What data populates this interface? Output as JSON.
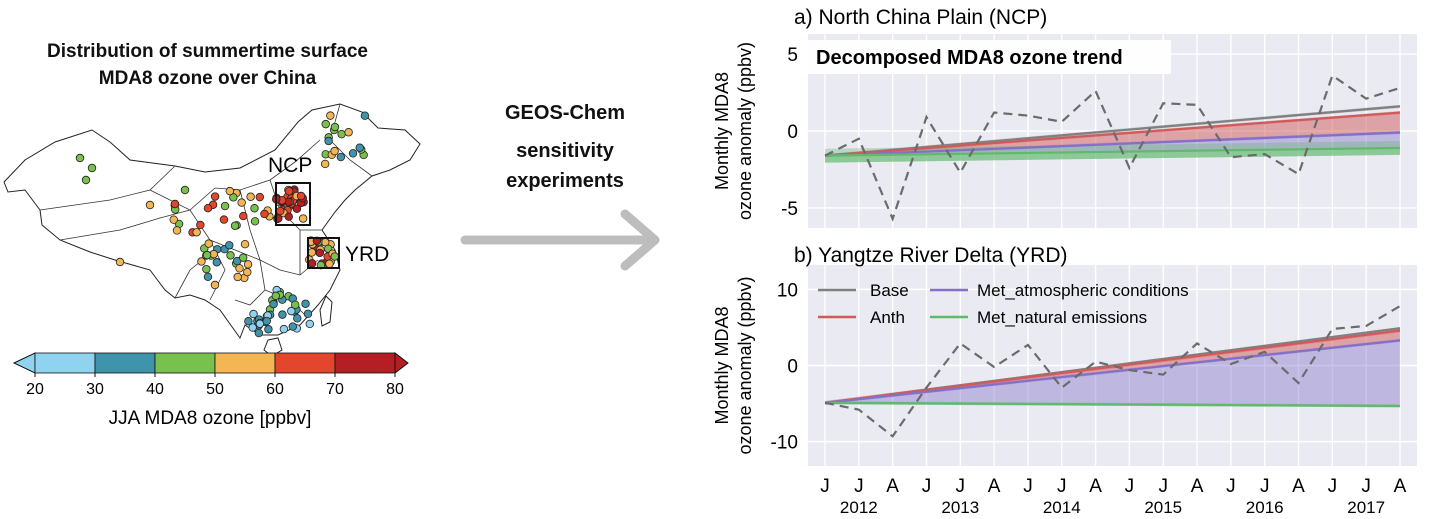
{
  "left_panel": {
    "title_line1": "Distribution of summertime surface",
    "title_line2": "MDA8 ozone over China",
    "box_labels": [
      "NCP",
      "YRD"
    ],
    "colorbar": {
      "ticks": [
        "20",
        "30",
        "40",
        "50",
        "60",
        "70",
        "80"
      ],
      "colors": [
        "#8fd3f0",
        "#3f93ab",
        "#79c14e",
        "#f4b555",
        "#e4462d",
        "#b51f24"
      ],
      "label": "JJA MDA8 ozone [ppbv]"
    }
  },
  "middle": {
    "line1": "GEOS-Chem",
    "line2": "sensitivity",
    "line3": "experiments"
  },
  "chart_data": [
    {
      "type": "area",
      "title": "a) North China Plain (NCP)",
      "inner_title": "Decomposed MDA8 ozone trend",
      "ylabel_line1": "Monthly MDA8",
      "ylabel_line2": "ozone anomaly (ppbv)",
      "ylim": [
        -6.3,
        6.3
      ],
      "yticks": [
        5,
        0,
        -5
      ],
      "grid": true,
      "observed": [
        -1.6,
        -0.5,
        -5.7,
        0.9,
        -2.7,
        1.2,
        1.0,
        0.6,
        2.6,
        -2.4,
        1.8,
        1.7,
        -1.7,
        -1.5,
        -2.8,
        3.6,
        2.1,
        2.8
      ],
      "trend_lines": {
        "Base": [
          -1.6,
          1.6
        ],
        "Anth": [
          -1.6,
          1.2
        ],
        "Met_atmospheric conditions": [
          -1.6,
          -0.1
        ],
        "Met_natural emissions": [
          -1.6,
          -1.1
        ]
      },
      "band_halfwidth": {
        "Base": 0.1,
        "Anth": 0.1,
        "Met_atmospheric conditions": 0.1,
        "Met_natural emissions": 0.45
      }
    },
    {
      "type": "area",
      "title": "b) Yangtze River Delta (YRD)",
      "ylabel_line1": "Monthly MDA8",
      "ylabel_line2": "ozone anomaly (ppbv)",
      "ylim": [
        -13.2,
        13.2
      ],
      "yticks": [
        10,
        0,
        -10
      ],
      "grid": true,
      "observed": [
        -4.9,
        -5.8,
        -9.3,
        -2.9,
        2.9,
        -0.2,
        2.7,
        -2.9,
        0.5,
        -0.6,
        -1.2,
        2.9,
        0.2,
        1.8,
        -2.3,
        4.8,
        5.2,
        7.8
      ],
      "trend_lines": {
        "Base": [
          -4.9,
          4.9
        ],
        "Anth": [
          -4.9,
          4.6
        ],
        "Met_atmospheric conditions": [
          -4.9,
          3.3
        ],
        "Met_natural emissions": [
          -4.9,
          -5.3
        ]
      },
      "band_halfwidth": {
        "Base": 0.15,
        "Anth": 0.25,
        "Met_atmospheric conditions": 0.2,
        "Met_natural emissions": 0.2
      },
      "legend": [
        "Base",
        "Met_atmospheric conditions",
        "Anth",
        "Met_natural emissions"
      ],
      "legend_placement": "top-left"
    }
  ],
  "x_axis": {
    "month_labels": [
      "J",
      "J",
      "A",
      "J",
      "J",
      "A",
      "J",
      "J",
      "A",
      "J",
      "J",
      "A",
      "J",
      "J",
      "A",
      "J",
      "J",
      "A"
    ],
    "years": [
      "2012",
      "2013",
      "2014",
      "2015",
      "2016",
      "2017"
    ]
  },
  "series_colors": {
    "Base": "#808080",
    "Anth": "#d05a5a",
    "Met_atmospheric conditions": "#8470c8",
    "Met_natural emissions": "#62b86c",
    "Observed": "#6b6b6b"
  }
}
